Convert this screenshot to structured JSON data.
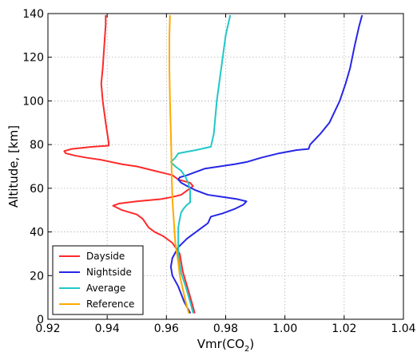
{
  "chart_data": {
    "type": "line",
    "title": "",
    "xlabel": "Vmr(CO",
    "xlabel_sub": "2",
    "xlabel_suffix": ")",
    "ylabel": "Altitude, [km]",
    "xlim": [
      0.92,
      1.04
    ],
    "ylim": [
      0,
      140
    ],
    "xticks": [
      0.92,
      0.94,
      0.96,
      0.98,
      1.0,
      1.02,
      1.04
    ],
    "xtick_labels": [
      "0.92",
      "0.94",
      "0.96",
      "0.98",
      "1.00",
      "1.02",
      "1.04"
    ],
    "yticks": [
      0,
      20,
      40,
      60,
      80,
      100,
      120,
      140
    ],
    "ytick_labels": [
      "0",
      "20",
      "40",
      "60",
      "80",
      "100",
      "120",
      "140"
    ],
    "grid": true,
    "legend_position": "bottom-left",
    "series": [
      {
        "name": "Dayside",
        "color": "#ff2a2a",
        "points": [
          [
            0.9695,
            3
          ],
          [
            0.9685,
            8
          ],
          [
            0.967,
            15
          ],
          [
            0.9655,
            22
          ],
          [
            0.965,
            26
          ],
          [
            0.9645,
            30
          ],
          [
            0.962,
            35
          ],
          [
            0.959,
            38
          ],
          [
            0.956,
            40
          ],
          [
            0.954,
            42
          ],
          [
            0.953,
            44
          ],
          [
            0.952,
            46
          ],
          [
            0.95,
            48
          ],
          [
            0.945,
            50
          ],
          [
            0.942,
            52
          ],
          [
            0.944,
            53
          ],
          [
            0.95,
            54
          ],
          [
            0.958,
            55
          ],
          [
            0.962,
            56
          ],
          [
            0.965,
            57
          ],
          [
            0.967,
            59
          ],
          [
            0.969,
            61
          ],
          [
            0.968,
            62.5
          ],
          [
            0.964,
            64
          ],
          [
            0.962,
            66
          ],
          [
            0.959,
            67
          ],
          [
            0.956,
            68
          ],
          [
            0.953,
            69
          ],
          [
            0.95,
            70
          ],
          [
            0.945,
            71
          ],
          [
            0.938,
            73
          ],
          [
            0.933,
            74
          ],
          [
            0.929,
            75
          ],
          [
            0.926,
            76
          ],
          [
            0.9255,
            77
          ],
          [
            0.928,
            78
          ],
          [
            0.935,
            79
          ],
          [
            0.9405,
            79.5
          ],
          [
            0.9405,
            81
          ],
          [
            0.9395,
            90
          ],
          [
            0.9385,
            100
          ],
          [
            0.938,
            108
          ],
          [
            0.9385,
            115
          ],
          [
            0.939,
            125
          ],
          [
            0.9395,
            135
          ],
          [
            0.9395,
            139
          ]
        ]
      },
      {
        "name": "Nightside",
        "color": "#2626e6",
        "points": [
          [
            0.968,
            3
          ],
          [
            0.966,
            8
          ],
          [
            0.964,
            15
          ],
          [
            0.962,
            20
          ],
          [
            0.9615,
            24
          ],
          [
            0.962,
            28
          ],
          [
            0.964,
            33
          ],
          [
            0.967,
            37
          ],
          [
            0.971,
            41
          ],
          [
            0.974,
            44
          ],
          [
            0.975,
            47
          ],
          [
            0.979,
            48.5
          ],
          [
            0.983,
            50.5
          ],
          [
            0.986,
            52.5
          ],
          [
            0.987,
            54
          ],
          [
            0.984,
            55
          ],
          [
            0.979,
            56
          ],
          [
            0.974,
            57
          ],
          [
            0.97,
            59
          ],
          [
            0.967,
            61
          ],
          [
            0.965,
            62.5
          ],
          [
            0.964,
            64
          ],
          [
            0.9645,
            65
          ],
          [
            0.967,
            66
          ],
          [
            0.97,
            67.5
          ],
          [
            0.973,
            69
          ],
          [
            0.978,
            70
          ],
          [
            0.983,
            71
          ],
          [
            0.987,
            72
          ],
          [
            0.992,
            74
          ],
          [
            0.998,
            76
          ],
          [
            1.004,
            77.5
          ],
          [
            1.008,
            78
          ],
          [
            1.0085,
            80
          ],
          [
            1.012,
            85
          ],
          [
            1.015,
            90
          ],
          [
            1.0185,
            100
          ],
          [
            1.0205,
            108
          ],
          [
            1.022,
            115
          ],
          [
            1.0235,
            125
          ],
          [
            1.025,
            134
          ],
          [
            1.026,
            139
          ]
        ]
      },
      {
        "name": "Average",
        "color": "#22c7c7",
        "points": [
          [
            0.969,
            3
          ],
          [
            0.968,
            8
          ],
          [
            0.9665,
            15
          ],
          [
            0.965,
            21
          ],
          [
            0.9645,
            25
          ],
          [
            0.964,
            30
          ],
          [
            0.964,
            36
          ],
          [
            0.964,
            42
          ],
          [
            0.9645,
            46
          ],
          [
            0.965,
            49
          ],
          [
            0.966,
            51
          ],
          [
            0.967,
            52.5
          ],
          [
            0.968,
            53.5
          ],
          [
            0.968,
            56
          ],
          [
            0.968,
            59
          ],
          [
            0.9675,
            62
          ],
          [
            0.9665,
            65
          ],
          [
            0.965,
            68
          ],
          [
            0.963,
            70
          ],
          [
            0.9615,
            72
          ],
          [
            0.963,
            74
          ],
          [
            0.964,
            76
          ],
          [
            0.97,
            77.5
          ],
          [
            0.975,
            79
          ],
          [
            0.976,
            85
          ],
          [
            0.977,
            100
          ],
          [
            0.9785,
            115
          ],
          [
            0.98,
            130
          ],
          [
            0.9815,
            139
          ]
        ]
      },
      {
        "name": "Reference",
        "color": "#ffaa00",
        "points": [
          [
            0.9675,
            3
          ],
          [
            0.9665,
            8
          ],
          [
            0.9655,
            14
          ],
          [
            0.9645,
            20
          ],
          [
            0.964,
            26
          ],
          [
            0.963,
            35
          ],
          [
            0.9625,
            45
          ],
          [
            0.962,
            55
          ],
          [
            0.9618,
            65
          ],
          [
            0.9616,
            80
          ],
          [
            0.9612,
            100
          ],
          [
            0.961,
            115
          ],
          [
            0.961,
            130
          ],
          [
            0.9612,
            139
          ]
        ]
      }
    ]
  }
}
